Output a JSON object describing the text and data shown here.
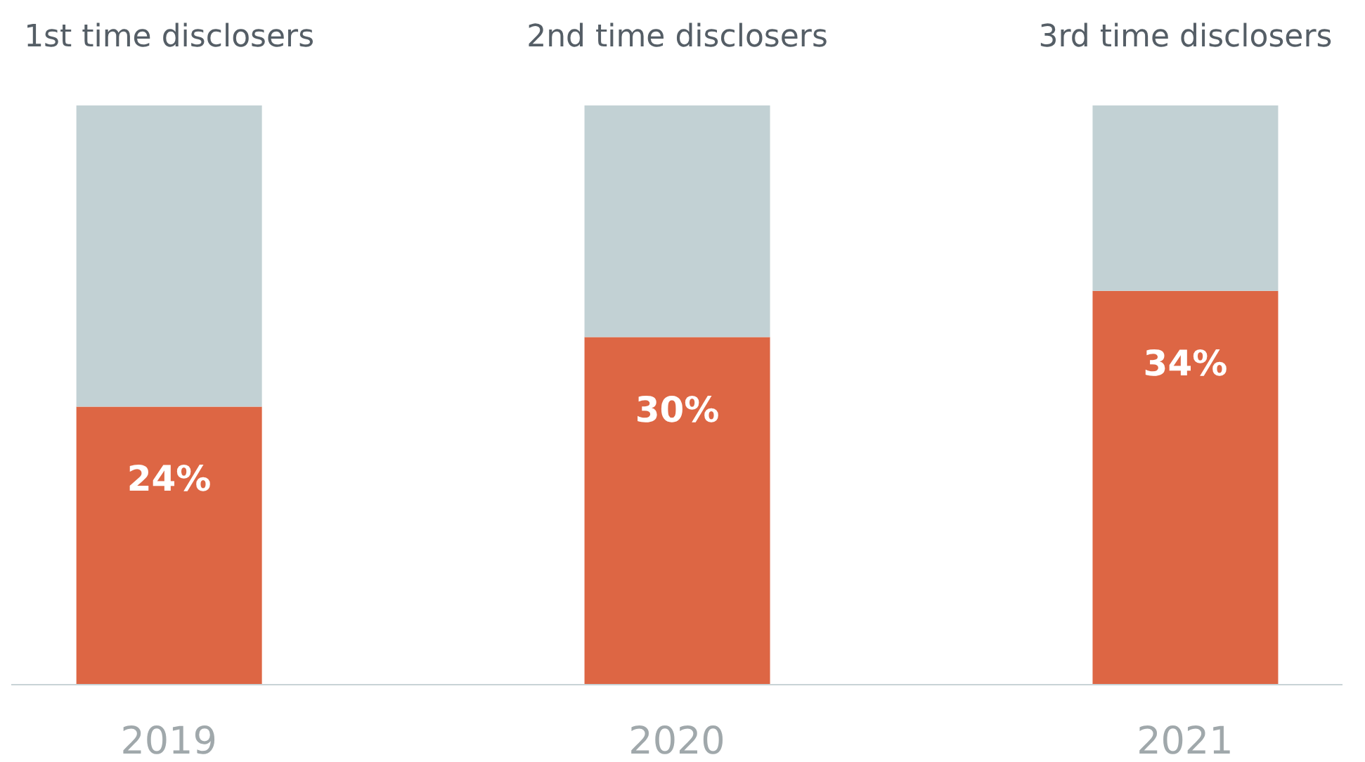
{
  "chart_data": {
    "type": "bar",
    "stacked": true,
    "categories": [
      "2019",
      "2020",
      "2021"
    ],
    "series": [
      {
        "color": "#dd6644",
        "values": [
          24,
          30,
          34
        ],
        "value_labels": [
          "24%",
          "30%",
          "34%"
        ]
      },
      {
        "color": "#c2d1d4",
        "values": [
          26,
          20,
          16
        ]
      }
    ],
    "ylim": [
      0,
      50
    ],
    "tick_labels": "x",
    "grid": false,
    "legend": false,
    "annotations": [
      "1st time disclosers",
      "2nd time disclosers",
      "3rd time disclosers"
    ]
  }
}
